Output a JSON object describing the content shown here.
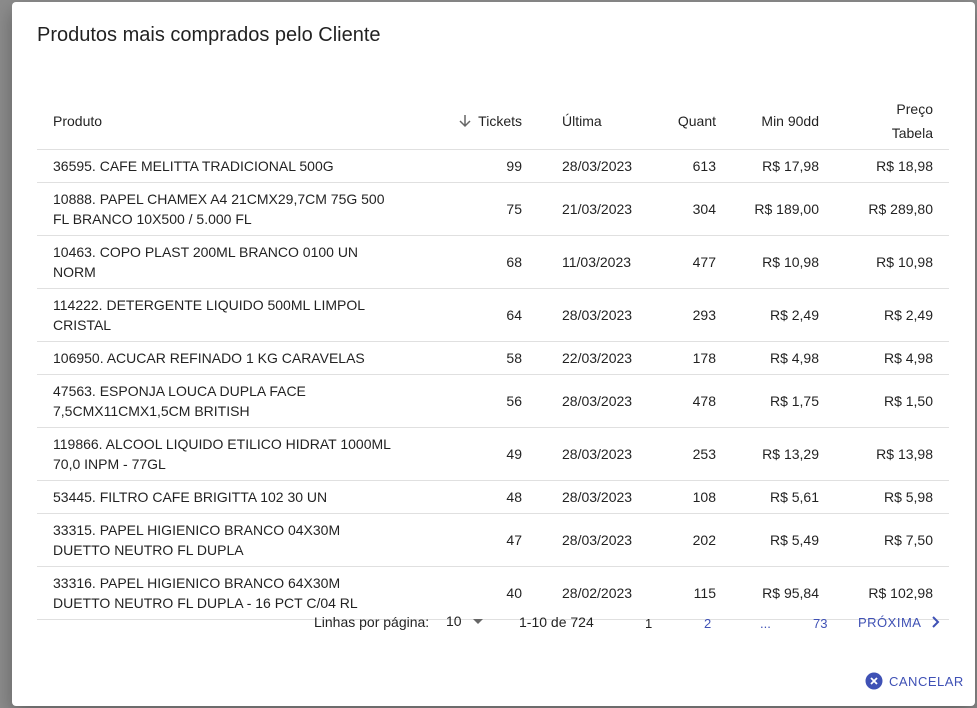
{
  "header": {
    "title": "Produtos mais comprados pelo Cliente"
  },
  "table": {
    "columns": [
      "Produto",
      "Tickets",
      "Última",
      "Quant",
      "Min 90dd",
      "Preço Tabela"
    ],
    "rows": [
      [
        "36595. CAFE MELITTA TRADICIONAL 500G",
        "99",
        "28/03/2023",
        "613",
        "R$ 17,98",
        "R$ 18,98"
      ],
      [
        "10888. PAPEL CHAMEX A4 21CMX29,7CM 75G 500 FL BRANCO 10X500 / 5.000 FL",
        "75",
        "21/03/2023",
        "304",
        "R$ 189,00",
        "R$ 289,80"
      ],
      [
        "10463. COPO PLAST 200ML BRANCO 0100 UN NORM",
        "68",
        "11/03/2023",
        "477",
        "R$ 10,98",
        "R$ 10,98"
      ],
      [
        "114222. DETERGENTE LIQUIDO 500ML LIMPOL CRISTAL",
        "64",
        "28/03/2023",
        "293",
        "R$ 2,49",
        "R$ 2,49"
      ],
      [
        "106950. ACUCAR REFINADO 1 KG CARAVELAS",
        "58",
        "22/03/2023",
        "178",
        "R$ 4,98",
        "R$ 4,98"
      ],
      [
        "47563. ESPONJA LOUCA DUPLA FACE 7,5CMX11CMX1,5CM BRITISH",
        "56",
        "28/03/2023",
        "478",
        "R$ 1,75",
        "R$ 1,50"
      ],
      [
        "119866. ALCOOL LIQUIDO ETILICO HIDRAT 1000ML 70,0 INPM - 77GL",
        "49",
        "28/03/2023",
        "253",
        "R$ 13,29",
        "R$ 13,98"
      ],
      [
        "53445. FILTRO CAFE BRIGITTA 102 30 UN",
        "48",
        "28/03/2023",
        "108",
        "R$ 5,61",
        "R$ 5,98"
      ],
      [
        "33315. PAPEL HIGIENICO BRANCO 04X30M DUETTO NEUTRO FL DUPLA",
        "47",
        "28/03/2023",
        "202",
        "R$ 5,49",
        "R$ 7,50"
      ],
      [
        "33316. PAPEL HIGIENICO BRANCO 64X30M DUETTO NEUTRO FL DUPLA - 16 PCT C/04 RL",
        "40",
        "28/02/2023",
        "115",
        "R$ 95,84",
        "R$ 102,98"
      ]
    ]
  },
  "footer": {
    "rows_per_page_label": "Linhas por página:",
    "rows_per_page": "10",
    "range": "1-10 de 724",
    "pages": [
      "1",
      "2",
      "...",
      "73"
    ],
    "next": "PRÓXIMA"
  },
  "actions": {
    "cancel": "CANCELAR"
  }
}
